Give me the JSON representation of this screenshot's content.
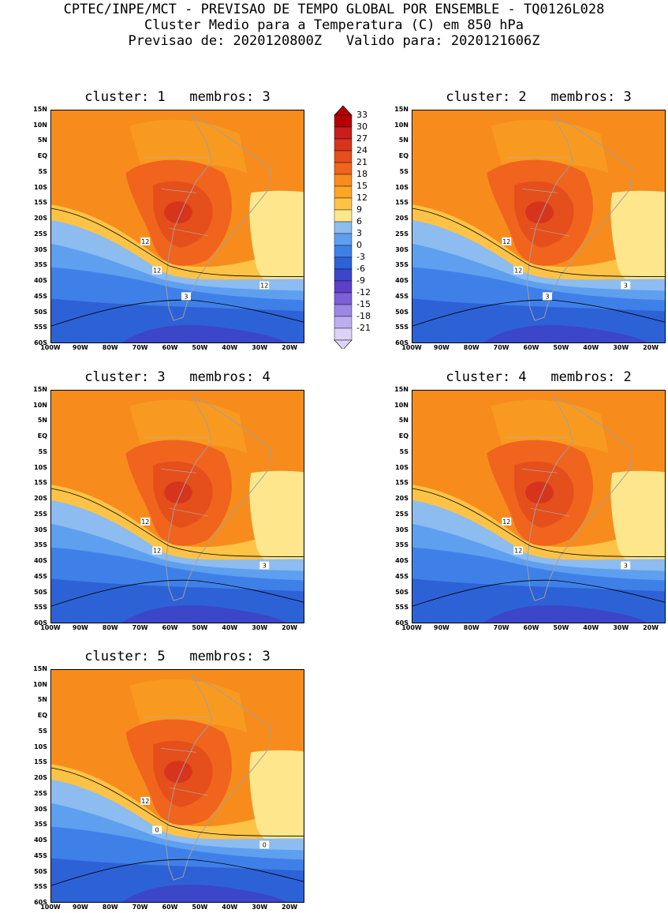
{
  "header": {
    "line1": "CPTEC/INPE/MCT - PREVISAO DE TEMPO GLOBAL POR ENSEMBLE - TQ0126L028",
    "line2": "Cluster Medio para a Temperatura (C) em 850 hPa",
    "line3": "Previsao de: 2020120800Z   Valido para: 2020121606Z"
  },
  "chart_data": [
    {
      "type": "heatmap",
      "title": "cluster: 1   membros: 3",
      "cluster": 1,
      "membros": 3,
      "variable": "Temperatura (C) 850 hPa",
      "xlim": [
        "100W",
        "15W"
      ],
      "ylim": [
        "60S",
        "15N"
      ],
      "contour_labels": [
        "12",
        "12",
        "12",
        "3"
      ]
    },
    {
      "type": "heatmap",
      "title": "cluster: 2   membros: 3",
      "cluster": 2,
      "membros": 3,
      "variable": "Temperatura (C) 850 hPa",
      "xlim": [
        "100W",
        "15W"
      ],
      "ylim": [
        "60S",
        "15N"
      ],
      "contour_labels": [
        "12",
        "12",
        "3",
        "3"
      ]
    },
    {
      "type": "heatmap",
      "title": "cluster: 3   membros: 4",
      "cluster": 3,
      "membros": 4,
      "variable": "Temperatura (C) 850 hPa",
      "xlim": [
        "100W",
        "15W"
      ],
      "ylim": [
        "60S",
        "15N"
      ],
      "contour_labels": [
        "12",
        "12",
        "3"
      ]
    },
    {
      "type": "heatmap",
      "title": "cluster: 4   membros: 2",
      "cluster": 4,
      "membros": 2,
      "variable": "Temperatura (C) 850 hPa",
      "xlim": [
        "100W",
        "15W"
      ],
      "ylim": [
        "60S",
        "15N"
      ],
      "contour_labels": [
        "12",
        "12",
        "3"
      ]
    },
    {
      "type": "heatmap",
      "title": "cluster: 5   membros: 3",
      "cluster": 5,
      "membros": 3,
      "variable": "Temperatura (C) 850 hPa",
      "xlim": [
        "100W",
        "15W"
      ],
      "ylim": [
        "60S",
        "15N"
      ],
      "contour_labels": [
        "12",
        "0",
        "0"
      ]
    }
  ],
  "axes": {
    "lat_ticks": [
      "15N",
      "10N",
      "5N",
      "EQ",
      "5S",
      "10S",
      "15S",
      "20S",
      "25S",
      "30S",
      "35S",
      "40S",
      "45S",
      "50S",
      "55S",
      "60S"
    ],
    "lon_ticks": [
      "100W",
      "90W",
      "80W",
      "70W",
      "60W",
      "50W",
      "40W",
      "30W",
      "20W"
    ]
  },
  "colorbar": {
    "labels": [
      "33",
      "30",
      "27",
      "24",
      "21",
      "18",
      "15",
      "12",
      "9",
      "6",
      "3",
      "0",
      "-3",
      "-6",
      "-9",
      "-12",
      "-15",
      "-18",
      "-21"
    ],
    "colors": [
      "#b40000",
      "#c81e1e",
      "#d7341e",
      "#e54f1b",
      "#f0641e",
      "#f78c1c",
      "#fba624",
      "#fcc347",
      "#fde68c",
      "#8cbcf0",
      "#5f9ff0",
      "#3f80e8",
      "#2d62d7",
      "#3c46c8",
      "#5f3fc8",
      "#7d5fd7",
      "#9c87e3",
      "#bcaeee",
      "#ddd3f7"
    ]
  }
}
